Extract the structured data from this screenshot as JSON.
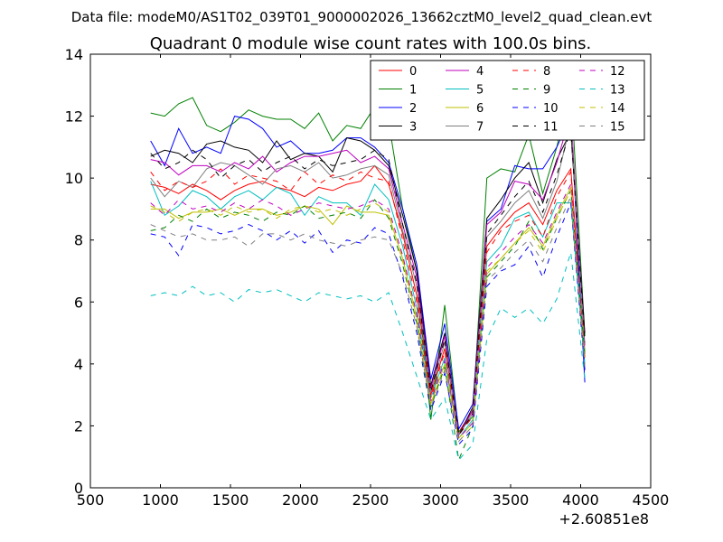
{
  "chart_data": {
    "type": "line",
    "suptitle": "Data file: modeM0/AS1T02_039T01_9000002026_13662cztM0_level2_quad_clean.evt",
    "title": "Quadrant 0 module wise count rates with 100.0s bins.",
    "xlabel": "",
    "ylabel": "",
    "x_offset_label": "+2.60851e8",
    "xlim": [
      500,
      4500
    ],
    "ylim": [
      0,
      14
    ],
    "xticks": [
      500,
      1000,
      1500,
      2000,
      2500,
      3000,
      3500,
      4000,
      4500
    ],
    "yticks": [
      0,
      2,
      4,
      6,
      8,
      10,
      12,
      14
    ],
    "legend_position": "top-right",
    "x": [
      930,
      1030,
      1130,
      1230,
      1330,
      1430,
      1530,
      1630,
      1730,
      1830,
      1930,
      2030,
      2130,
      2230,
      2330,
      2430,
      2530,
      2630,
      2730,
      2830,
      2930,
      3030,
      3130,
      3230,
      3330,
      3430,
      3530,
      3630,
      3730,
      3830,
      3930,
      4030
    ],
    "series": [
      {
        "name": "0",
        "color": "#ff0000",
        "dash": "solid",
        "values": [
          9.8,
          9.7,
          9.5,
          9.8,
          9.6,
          9.3,
          9.6,
          9.8,
          9.9,
          9.7,
          9.6,
          9.4,
          9.7,
          9.6,
          9.8,
          9.9,
          10.4,
          9.8,
          8.2,
          6.2,
          3.0,
          4.5,
          1.8,
          2.5,
          7.8,
          8.4,
          8.9,
          9.2,
          8.5,
          9.6,
          10.3,
          4.2
        ]
      },
      {
        "name": "1",
        "color": "#008000",
        "dash": "solid",
        "values": [
          12.1,
          12.0,
          12.4,
          12.6,
          11.7,
          11.5,
          11.8,
          12.2,
          12.0,
          11.9,
          11.9,
          11.6,
          12.1,
          11.2,
          11.7,
          11.6,
          12.3,
          11.8,
          9.0,
          7.0,
          2.2,
          5.9,
          1.8,
          2.3,
          10.0,
          10.3,
          10.2,
          11.4,
          9.5,
          11.0,
          13.0,
          4.9
        ]
      },
      {
        "name": "2",
        "color": "#0000ff",
        "dash": "solid",
        "values": [
          11.2,
          10.4,
          11.6,
          10.8,
          11.0,
          10.8,
          12.0,
          11.9,
          11.6,
          11.0,
          11.2,
          10.8,
          10.8,
          10.9,
          11.3,
          11.3,
          11.0,
          10.5,
          9.0,
          7.2,
          3.5,
          5.3,
          1.9,
          2.7,
          8.6,
          9.0,
          10.4,
          10.3,
          10.3,
          11.0,
          12.0,
          3.4
        ]
      },
      {
        "name": "3",
        "color": "#000000",
        "dash": "solid",
        "values": [
          10.7,
          10.9,
          10.8,
          10.5,
          11.1,
          11.2,
          11.0,
          10.9,
          10.5,
          11.2,
          10.6,
          10.8,
          10.7,
          10.2,
          11.3,
          11.2,
          10.9,
          10.4,
          8.8,
          7.0,
          3.3,
          5.0,
          1.7,
          2.6,
          8.7,
          9.3,
          10.0,
          10.5,
          9.2,
          10.6,
          11.5,
          5.0
        ]
      },
      {
        "name": "4",
        "color": "#bf00bf",
        "dash": "solid",
        "values": [
          10.6,
          10.5,
          10.1,
          10.4,
          10.4,
          10.2,
          10.5,
          10.3,
          10.7,
          10.2,
          10.5,
          10.7,
          10.7,
          10.8,
          10.9,
          10.5,
          10.7,
          10.3,
          8.5,
          6.8,
          3.2,
          4.9,
          1.7,
          2.5,
          8.5,
          8.9,
          9.9,
          9.8,
          9.3,
          10.5,
          12.1,
          4.6
        ]
      },
      {
        "name": "5",
        "color": "#00bfbf",
        "dash": "solid",
        "values": [
          9.9,
          8.8,
          9.1,
          9.6,
          9.4,
          9.0,
          9.4,
          9.6,
          9.3,
          9.7,
          9.5,
          8.8,
          9.4,
          9.2,
          9.2,
          8.8,
          9.8,
          9.3,
          7.8,
          5.8,
          2.9,
          4.2,
          1.6,
          2.2,
          7.3,
          7.8,
          8.7,
          8.9,
          8.1,
          9.2,
          9.2,
          4.0
        ]
      },
      {
        "name": "6",
        "color": "#bfbf00",
        "dash": "solid",
        "values": [
          9.0,
          9.0,
          8.7,
          8.9,
          8.9,
          9.0,
          8.8,
          9.0,
          9.0,
          8.8,
          8.9,
          9.1,
          9.0,
          8.5,
          9.1,
          8.9,
          8.9,
          8.8,
          7.4,
          5.5,
          2.7,
          4.0,
          1.6,
          2.1,
          6.9,
          7.4,
          7.9,
          8.4,
          7.8,
          8.8,
          9.7,
          4.2
        ]
      },
      {
        "name": "7",
        "color": "#808080",
        "dash": "solid",
        "values": [
          10.0,
          9.4,
          9.9,
          9.7,
          10.3,
          10.5,
          10.4,
          10.1,
          9.8,
          10.3,
          10.4,
          10.2,
          10.5,
          10.0,
          10.1,
          10.3,
          10.4,
          10.1,
          8.3,
          6.5,
          3.1,
          4.7,
          1.7,
          2.4,
          8.1,
          8.6,
          9.2,
          9.6,
          8.7,
          9.9,
          11.8,
          4.4
        ]
      },
      {
        "name": "8",
        "color": "#ff0000",
        "dash": "dashed",
        "values": [
          10.2,
          9.6,
          9.9,
          9.7,
          9.9,
          10.3,
          9.8,
          10.1,
          10.0,
          9.9,
          9.6,
          10.2,
          9.8,
          10.1,
          9.9,
          10.2,
          10.0,
          9.9,
          8.0,
          6.0,
          2.9,
          4.4,
          1.7,
          2.3,
          7.6,
          8.3,
          8.6,
          8.8,
          8.1,
          9.4,
          10.2,
          4.1
        ]
      },
      {
        "name": "9",
        "color": "#008000",
        "dash": "dashed",
        "values": [
          8.3,
          8.4,
          8.8,
          8.6,
          9.0,
          8.7,
          8.9,
          8.8,
          8.6,
          8.9,
          8.8,
          9.1,
          8.7,
          8.8,
          8.9,
          8.7,
          9.3,
          8.7,
          7.2,
          5.3,
          2.6,
          3.9,
          0.9,
          2.0,
          6.8,
          7.3,
          7.8,
          8.6,
          7.7,
          8.7,
          9.6,
          4.3
        ]
      },
      {
        "name": "10",
        "color": "#0000ff",
        "dash": "dashed",
        "values": [
          8.2,
          8.1,
          7.5,
          8.5,
          8.4,
          8.2,
          8.3,
          8.5,
          8.3,
          8.0,
          8.3,
          7.9,
          8.3,
          7.6,
          8.0,
          7.9,
          8.4,
          8.2,
          6.8,
          5.0,
          2.5,
          3.7,
          1.4,
          1.9,
          6.5,
          7.0,
          7.2,
          7.8,
          6.8,
          8.1,
          9.2,
          3.8
        ]
      },
      {
        "name": "11",
        "color": "#000000",
        "dash": "dashed",
        "values": [
          10.8,
          10.3,
          10.5,
          10.9,
          10.6,
          10.0,
          10.4,
          10.6,
          10.2,
          10.5,
          10.7,
          10.3,
          10.6,
          10.4,
          10.5,
          10.6,
          10.9,
          10.6,
          8.5,
          6.6,
          3.1,
          4.8,
          1.7,
          2.4,
          8.2,
          8.8,
          9.4,
          9.9,
          8.9,
          10.1,
          11.6,
          4.7
        ]
      },
      {
        "name": "12",
        "color": "#bf00bf",
        "dash": "dashed",
        "values": [
          9.2,
          8.8,
          9.3,
          9.0,
          9.1,
          8.9,
          9.2,
          9.0,
          9.3,
          9.1,
          8.8,
          9.0,
          9.2,
          9.1,
          9.0,
          9.1,
          9.3,
          9.0,
          7.5,
          5.6,
          2.8,
          4.1,
          1.6,
          2.1,
          7.1,
          7.6,
          8.1,
          8.5,
          7.9,
          8.9,
          9.8,
          4.1
        ]
      },
      {
        "name": "13",
        "color": "#00bfbf",
        "dash": "dashed",
        "values": [
          6.2,
          6.3,
          6.2,
          6.5,
          6.2,
          6.3,
          6.0,
          6.4,
          6.3,
          6.4,
          6.2,
          6.0,
          6.3,
          6.2,
          6.1,
          6.2,
          6.0,
          6.3,
          5.0,
          3.6,
          2.2,
          2.9,
          0.9,
          1.4,
          4.8,
          5.8,
          5.5,
          5.8,
          5.3,
          6.1,
          7.6,
          3.5
        ]
      },
      {
        "name": "14",
        "color": "#bfbf00",
        "dash": "dashed",
        "values": [
          9.1,
          8.9,
          8.6,
          8.9,
          9.0,
          8.8,
          9.1,
          8.9,
          9.0,
          8.7,
          9.0,
          9.1,
          8.9,
          9.0,
          8.8,
          9.0,
          9.2,
          8.9,
          7.3,
          5.4,
          2.7,
          4.0,
          1.5,
          2.0,
          7.0,
          7.4,
          7.9,
          8.3,
          7.6,
          8.7,
          9.6,
          4.0
        ]
      },
      {
        "name": "15",
        "color": "#808080",
        "dash": "dashed",
        "values": [
          8.5,
          8.3,
          8.1,
          8.2,
          8.0,
          8.0,
          8.1,
          7.8,
          8.2,
          8.2,
          8.0,
          8.2,
          8.0,
          7.9,
          7.8,
          8.0,
          8.1,
          8.0,
          6.9,
          5.2,
          2.6,
          3.8,
          1.5,
          2.0,
          6.7,
          7.1,
          7.6,
          8.0,
          7.3,
          8.4,
          9.4,
          3.9
        ]
      }
    ]
  }
}
